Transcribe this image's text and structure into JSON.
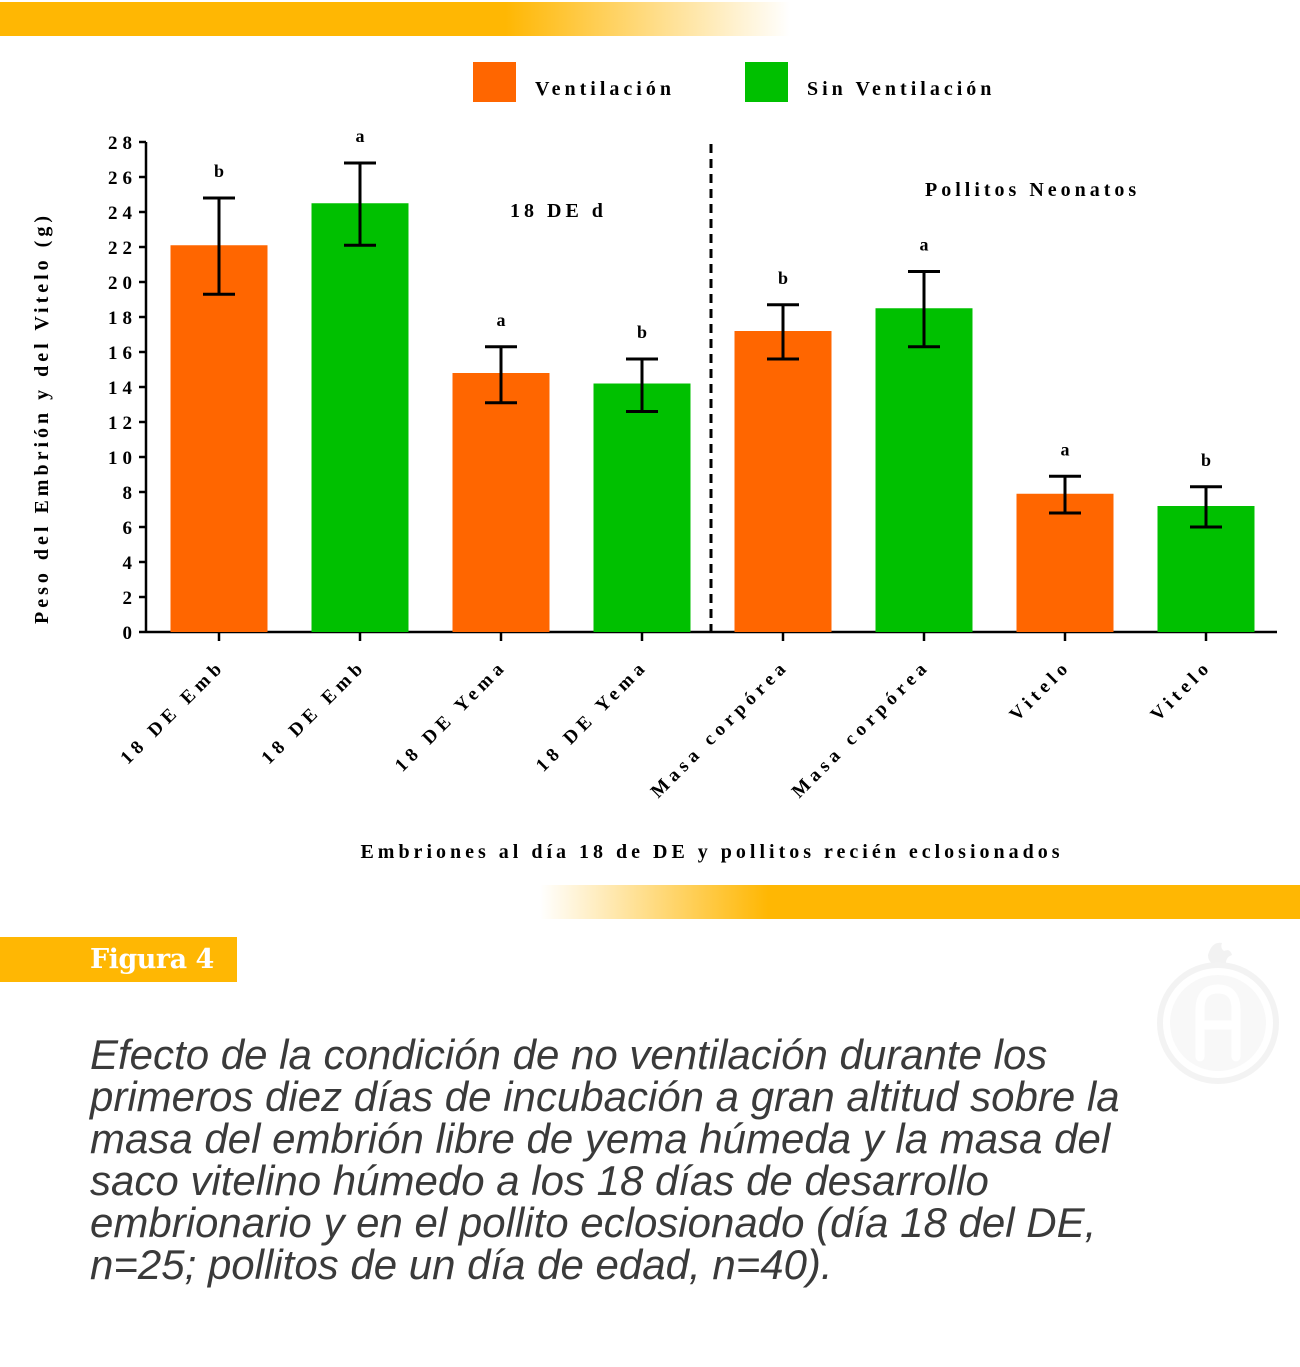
{
  "colors": {
    "ventilacion": "#ff6600",
    "sin_ventilacion": "#00c000",
    "accent": "#ffb703",
    "caption_text": "#3a3a3a"
  },
  "figure_label": "Figura 4",
  "caption": "Efecto de la condición de no ventilación durante los primeros diez días de incubación a gran altitud sobre la masa del embrión libre de yema húmeda y la masa del saco vitelino húmedo a los 18 días de desarrollo embrionario y en el pollito eclosionado (día 18 del DE, n=25; pollitos de un día de edad, n=40).",
  "watermark_icon": "rooster-a-logo",
  "chart_data": {
    "type": "bar",
    "categories": [
      "18 DE Emb",
      "18 DE Emb",
      "18 DE Yema",
      "18 DE Yema",
      "Masa corpórea",
      "Masa corpórea",
      "Vitelo",
      "Vitelo"
    ],
    "bar_series": [
      "Ventilación",
      "Sin Ventilación",
      "Ventilación",
      "Sin Ventilación",
      "Ventilación",
      "Sin Ventilación",
      "Ventilación",
      "Sin Ventilación"
    ],
    "values": [
      22.1,
      24.5,
      14.8,
      14.2,
      17.2,
      18.5,
      7.9,
      7.2
    ],
    "error_high": [
      24.8,
      26.8,
      16.3,
      15.6,
      18.7,
      20.6,
      8.9,
      8.3
    ],
    "error_low": [
      19.3,
      22.1,
      13.1,
      12.6,
      15.6,
      16.3,
      6.8,
      6.0
    ],
    "significance": [
      "b",
      "a",
      "a",
      "b",
      "b",
      "a",
      "a",
      "b"
    ],
    "legend": [
      {
        "name": "Ventilación",
        "color": "#ff6600"
      },
      {
        "name": "Sin Ventilación",
        "color": "#00c000"
      }
    ],
    "group_labels": [
      "18 DE d",
      "Pollitos Neonatos"
    ],
    "xlabel": "Embriones al día 18 de DE y pollitos recién eclosionados",
    "ylabel": "Peso del Embrión y del Vitelo (g)",
    "ylim": [
      0,
      28
    ],
    "yticks": [
      0,
      2,
      4,
      6,
      8,
      10,
      12,
      14,
      16,
      18,
      20,
      22,
      24,
      26,
      28
    ],
    "grid": false,
    "legend_position": "top"
  }
}
